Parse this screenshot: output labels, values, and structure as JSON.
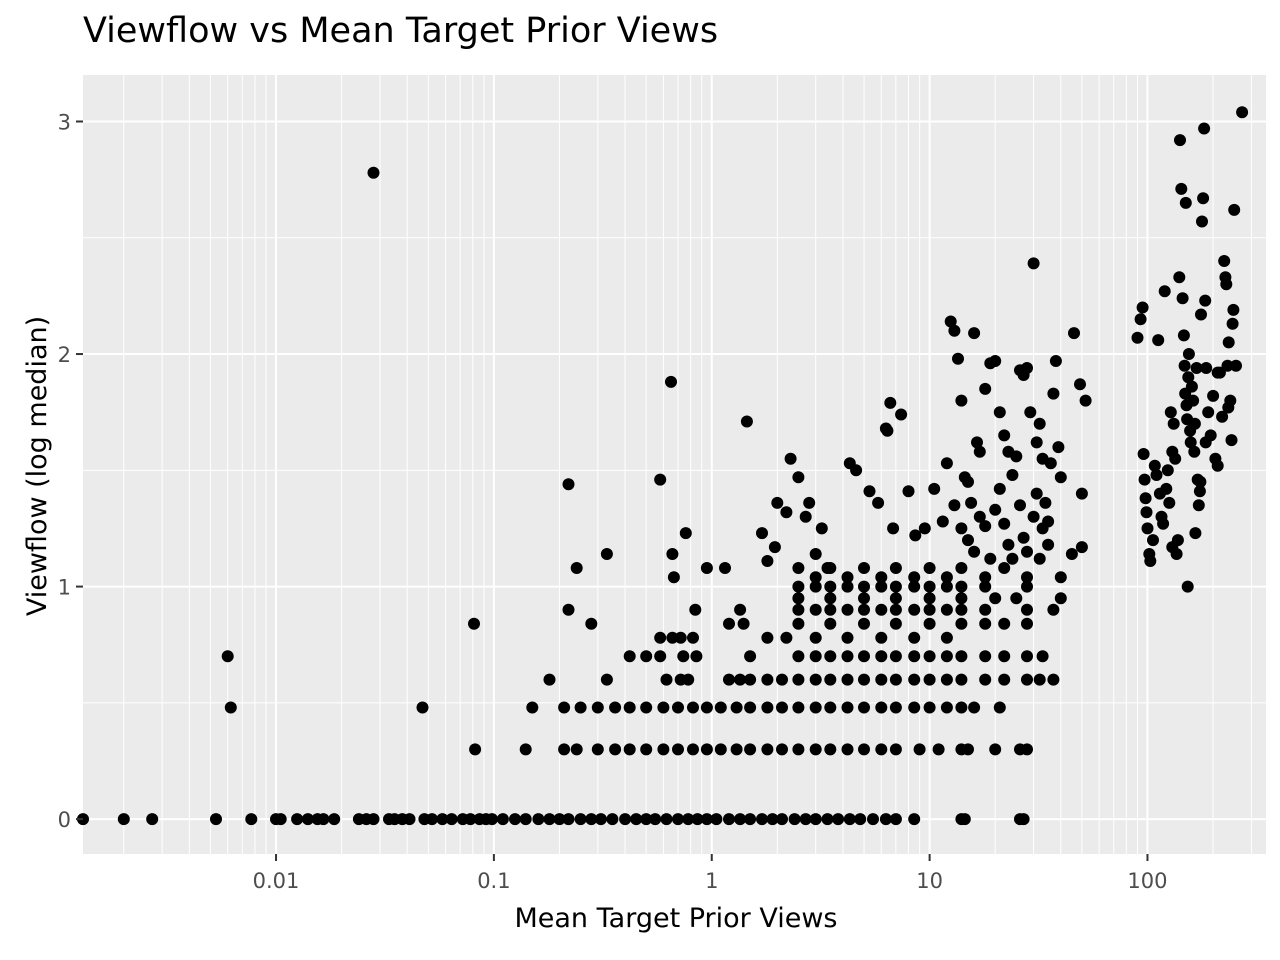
{
  "chart_data": {
    "type": "scatter",
    "title": "Viewflow vs Mean Target Prior Views",
    "xlabel": "Mean Target Prior Views",
    "ylabel": "Viewflow (log median)",
    "x_scale": "log10",
    "xlim": [
      0.0013,
      350
    ],
    "ylim": [
      -0.15,
      3.2
    ],
    "x_ticks": [
      {
        "value": 0.01,
        "label": "0.01"
      },
      {
        "value": 0.1,
        "label": "0.1"
      },
      {
        "value": 1,
        "label": "1"
      },
      {
        "value": 10,
        "label": "10"
      },
      {
        "value": 100,
        "label": "100"
      }
    ],
    "y_ticks": [
      {
        "value": 0,
        "label": "0"
      },
      {
        "value": 1,
        "label": "1"
      },
      {
        "value": 2,
        "label": "2"
      },
      {
        "value": 3,
        "label": "3"
      }
    ],
    "grid": true,
    "panel_color": "#ebebeb",
    "point_color": "#000000",
    "points": [
      [
        0.0013,
        0
      ],
      [
        0.002,
        0
      ],
      [
        0.0027,
        0
      ],
      [
        0.0053,
        0
      ],
      [
        0.0077,
        0
      ],
      [
        0.01,
        0
      ],
      [
        0.0105,
        0
      ],
      [
        0.0125,
        0
      ],
      [
        0.014,
        0
      ],
      [
        0.0155,
        0
      ],
      [
        0.0165,
        0
      ],
      [
        0.0185,
        0
      ],
      [
        0.024,
        0
      ],
      [
        0.026,
        0
      ],
      [
        0.028,
        0
      ],
      [
        0.033,
        0
      ],
      [
        0.035,
        0
      ],
      [
        0.038,
        0
      ],
      [
        0.041,
        0
      ],
      [
        0.048,
        0
      ],
      [
        0.052,
        0
      ],
      [
        0.058,
        0
      ],
      [
        0.064,
        0
      ],
      [
        0.072,
        0
      ],
      [
        0.078,
        0
      ],
      [
        0.086,
        0
      ],
      [
        0.092,
        0
      ],
      [
        0.098,
        0
      ],
      [
        0.11,
        0
      ],
      [
        0.125,
        0
      ],
      [
        0.14,
        0
      ],
      [
        0.16,
        0
      ],
      [
        0.18,
        0
      ],
      [
        0.2,
        0
      ],
      [
        0.22,
        0
      ],
      [
        0.25,
        0
      ],
      [
        0.28,
        0
      ],
      [
        0.31,
        0
      ],
      [
        0.35,
        0
      ],
      [
        0.4,
        0
      ],
      [
        0.45,
        0
      ],
      [
        0.5,
        0
      ],
      [
        0.55,
        0
      ],
      [
        0.62,
        0
      ],
      [
        0.7,
        0
      ],
      [
        0.78,
        0
      ],
      [
        0.86,
        0
      ],
      [
        0.95,
        0
      ],
      [
        1.05,
        0
      ],
      [
        1.2,
        0
      ],
      [
        1.35,
        0
      ],
      [
        1.5,
        0
      ],
      [
        1.7,
        0
      ],
      [
        1.9,
        0
      ],
      [
        2.1,
        0
      ],
      [
        2.4,
        0
      ],
      [
        2.7,
        0
      ],
      [
        3.0,
        0
      ],
      [
        3.4,
        0
      ],
      [
        3.8,
        0
      ],
      [
        4.3,
        0
      ],
      [
        4.8,
        0
      ],
      [
        5.5,
        0
      ],
      [
        6.3,
        0
      ],
      [
        7.0,
        0
      ],
      [
        8.5,
        0
      ],
      [
        14,
        0
      ],
      [
        14.5,
        0
      ],
      [
        26,
        0
      ],
      [
        27,
        0
      ],
      [
        0.028,
        2.78
      ],
      [
        0.006,
        0.7
      ],
      [
        0.0062,
        0.48
      ],
      [
        0.047,
        0.48
      ],
      [
        0.081,
        0.84
      ],
      [
        0.082,
        0.3
      ],
      [
        0.14,
        0.3
      ],
      [
        0.15,
        0.48
      ],
      [
        0.18,
        0.6
      ],
      [
        0.22,
        1.44
      ],
      [
        0.22,
        0.9
      ],
      [
        0.24,
        1.08
      ],
      [
        0.28,
        0.84
      ],
      [
        0.33,
        1.14
      ],
      [
        0.33,
        0.6
      ],
      [
        0.21,
        0.48
      ],
      [
        0.25,
        0.48
      ],
      [
        0.3,
        0.48
      ],
      [
        0.36,
        0.48
      ],
      [
        0.42,
        0.48
      ],
      [
        0.5,
        0.48
      ],
      [
        0.6,
        0.48
      ],
      [
        0.7,
        0.48
      ],
      [
        0.82,
        0.48
      ],
      [
        0.95,
        0.48
      ],
      [
        1.1,
        0.48
      ],
      [
        1.3,
        0.48
      ],
      [
        1.5,
        0.48
      ],
      [
        1.8,
        0.48
      ],
      [
        2.1,
        0.48
      ],
      [
        2.5,
        0.48
      ],
      [
        3.0,
        0.48
      ],
      [
        3.5,
        0.48
      ],
      [
        4.2,
        0.48
      ],
      [
        5.0,
        0.48
      ],
      [
        6.0,
        0.48
      ],
      [
        7.0,
        0.48
      ],
      [
        8.5,
        0.48
      ],
      [
        10,
        0.48
      ],
      [
        12,
        0.48
      ],
      [
        14,
        0.48
      ],
      [
        16,
        0.48
      ],
      [
        21,
        0.48
      ],
      [
        0.21,
        0.3
      ],
      [
        0.24,
        0.3
      ],
      [
        0.3,
        0.3
      ],
      [
        0.36,
        0.3
      ],
      [
        0.42,
        0.3
      ],
      [
        0.5,
        0.3
      ],
      [
        0.6,
        0.3
      ],
      [
        0.7,
        0.3
      ],
      [
        0.82,
        0.3
      ],
      [
        0.95,
        0.3
      ],
      [
        1.1,
        0.3
      ],
      [
        1.3,
        0.3
      ],
      [
        1.5,
        0.3
      ],
      [
        1.8,
        0.3
      ],
      [
        2.1,
        0.3
      ],
      [
        2.5,
        0.3
      ],
      [
        3.0,
        0.3
      ],
      [
        3.5,
        0.3
      ],
      [
        4.2,
        0.3
      ],
      [
        5.0,
        0.3
      ],
      [
        6.0,
        0.3
      ],
      [
        7.0,
        0.3
      ],
      [
        9,
        0.3
      ],
      [
        11,
        0.3
      ],
      [
        14,
        0.3
      ],
      [
        15,
        0.3
      ],
      [
        20,
        0.3
      ],
      [
        26,
        0.3
      ],
      [
        28,
        0.3
      ],
      [
        0.42,
        0.7
      ],
      [
        0.5,
        0.7
      ],
      [
        0.58,
        0.78
      ],
      [
        0.58,
        0.7
      ],
      [
        0.62,
        0.6
      ],
      [
        0.66,
        0.78
      ],
      [
        0.72,
        0.78
      ],
      [
        0.72,
        0.6
      ],
      [
        0.74,
        0.7
      ],
      [
        0.78,
        0.6
      ],
      [
        0.82,
        0.78
      ],
      [
        0.85,
        0.7
      ],
      [
        0.84,
        0.9
      ],
      [
        1.2,
        0.6
      ],
      [
        1.35,
        0.6
      ],
      [
        1.5,
        0.6
      ],
      [
        1.8,
        0.6
      ],
      [
        2.1,
        0.6
      ],
      [
        2.5,
        0.6
      ],
      [
        3.0,
        0.6
      ],
      [
        3.5,
        0.6
      ],
      [
        4.2,
        0.6
      ],
      [
        5.0,
        0.6
      ],
      [
        6.0,
        0.6
      ],
      [
        7.0,
        0.6
      ],
      [
        8.5,
        0.6
      ],
      [
        10,
        0.6
      ],
      [
        12,
        0.6
      ],
      [
        14,
        0.6
      ],
      [
        18,
        0.6
      ],
      [
        22,
        0.6
      ],
      [
        28,
        0.6
      ],
      [
        32,
        0.6
      ],
      [
        37,
        0.6
      ],
      [
        1.2,
        0.84
      ],
      [
        1.35,
        0.9
      ],
      [
        1.4,
        0.84
      ],
      [
        1.5,
        0.7
      ],
      [
        1.8,
        0.78
      ],
      [
        2.2,
        0.78
      ],
      [
        2.5,
        0.84
      ],
      [
        3.0,
        0.78
      ],
      [
        3.5,
        0.84
      ],
      [
        4.2,
        0.78
      ],
      [
        5.0,
        0.84
      ],
      [
        6.0,
        0.78
      ],
      [
        7.0,
        0.84
      ],
      [
        8.5,
        0.78
      ],
      [
        10,
        0.84
      ],
      [
        12,
        0.78
      ],
      [
        14,
        0.84
      ],
      [
        18,
        0.84
      ],
      [
        22,
        0.84
      ],
      [
        28,
        0.84
      ],
      [
        2.5,
        0.7
      ],
      [
        3.0,
        0.7
      ],
      [
        3.5,
        0.7
      ],
      [
        4.2,
        0.7
      ],
      [
        5.0,
        0.7
      ],
      [
        6.0,
        0.7
      ],
      [
        7.0,
        0.7
      ],
      [
        8.5,
        0.7
      ],
      [
        10,
        0.7
      ],
      [
        12,
        0.7
      ],
      [
        14,
        0.7
      ],
      [
        18,
        0.7
      ],
      [
        22,
        0.7
      ],
      [
        28,
        0.7
      ],
      [
        33,
        0.7
      ],
      [
        2.5,
        0.9
      ],
      [
        3.0,
        0.9
      ],
      [
        3.5,
        0.9
      ],
      [
        4.2,
        0.9
      ],
      [
        5.0,
        0.9
      ],
      [
        6.0,
        0.9
      ],
      [
        7.0,
        0.9
      ],
      [
        8.5,
        0.9
      ],
      [
        10,
        0.9
      ],
      [
        12,
        0.9
      ],
      [
        14,
        0.9
      ],
      [
        18,
        0.9
      ],
      [
        28,
        0.9
      ],
      [
        37,
        0.9
      ],
      [
        2.5,
        0.95
      ],
      [
        3.5,
        0.95
      ],
      [
        5.0,
        0.95
      ],
      [
        7.0,
        0.95
      ],
      [
        10,
        0.95
      ],
      [
        14,
        0.95
      ],
      [
        20,
        0.95
      ],
      [
        25,
        0.95
      ],
      [
        40,
        0.95
      ],
      [
        2.5,
        1.0
      ],
      [
        3.0,
        1.0
      ],
      [
        3.5,
        1.0
      ],
      [
        4.2,
        1.0
      ],
      [
        5.0,
        1.0
      ],
      [
        6.0,
        1.0
      ],
      [
        7.0,
        1.0
      ],
      [
        8.5,
        1.0
      ],
      [
        10,
        1.0
      ],
      [
        12,
        1.0
      ],
      [
        14,
        1.0
      ],
      [
        18,
        1.0
      ],
      [
        28,
        1.0
      ],
      [
        2.5,
        1.08
      ],
      [
        3.0,
        1.04
      ],
      [
        3.5,
        1.08
      ],
      [
        4.2,
        1.04
      ],
      [
        5.0,
        1.08
      ],
      [
        6.0,
        1.04
      ],
      [
        7.0,
        1.08
      ],
      [
        8.5,
        1.04
      ],
      [
        10,
        1.08
      ],
      [
        12,
        1.04
      ],
      [
        14,
        1.08
      ],
      [
        18,
        1.04
      ],
      [
        22,
        1.08
      ],
      [
        28,
        1.04
      ],
      [
        40,
        1.04
      ],
      [
        45,
        1.14
      ],
      [
        50,
        1.17
      ],
      [
        0.58,
        1.46
      ],
      [
        0.65,
        1.88
      ],
      [
        0.66,
        1.14
      ],
      [
        0.67,
        1.04
      ],
      [
        0.76,
        1.23
      ],
      [
        0.95,
        1.08
      ],
      [
        1.15,
        1.08
      ],
      [
        1.45,
        1.71
      ],
      [
        1.7,
        1.23
      ],
      [
        1.8,
        1.11
      ],
      [
        1.95,
        1.17
      ],
      [
        2.0,
        1.36
      ],
      [
        2.2,
        1.32
      ],
      [
        2.3,
        1.55
      ],
      [
        2.5,
        1.47
      ],
      [
        2.7,
        1.3
      ],
      [
        2.8,
        1.36
      ],
      [
        3.2,
        1.25
      ],
      [
        3.0,
        1.14
      ],
      [
        3.4,
        1.08
      ],
      [
        4.3,
        1.53
      ],
      [
        4.6,
        1.5
      ],
      [
        5.3,
        1.41
      ],
      [
        5.8,
        1.36
      ],
      [
        6.3,
        1.68
      ],
      [
        6.4,
        1.67
      ],
      [
        6.6,
        1.79
      ],
      [
        6.8,
        1.25
      ],
      [
        7.4,
        1.74
      ],
      [
        8.0,
        1.41
      ],
      [
        8.6,
        1.22
      ],
      [
        9.5,
        1.25
      ],
      [
        10.5,
        1.42
      ],
      [
        11.5,
        1.28
      ],
      [
        12,
        1.53
      ],
      [
        12.5,
        2.14
      ],
      [
        13,
        2.1
      ],
      [
        13.5,
        1.98
      ],
      [
        14,
        1.8
      ],
      [
        14.5,
        1.47
      ],
      [
        15,
        1.45
      ],
      [
        15.5,
        1.36
      ],
      [
        16,
        2.09
      ],
      [
        16.5,
        1.62
      ],
      [
        17,
        1.58
      ],
      [
        18,
        1.85
      ],
      [
        19,
        1.96
      ],
      [
        20,
        1.97
      ],
      [
        21,
        1.75
      ],
      [
        22,
        1.65
      ],
      [
        23,
        1.58
      ],
      [
        24,
        1.48
      ],
      [
        25,
        1.56
      ],
      [
        26,
        1.93
      ],
      [
        27,
        1.91
      ],
      [
        28,
        1.94
      ],
      [
        29,
        1.75
      ],
      [
        30,
        2.39
      ],
      [
        31,
        1.62
      ],
      [
        32,
        1.7
      ],
      [
        33,
        1.55
      ],
      [
        34,
        1.36
      ],
      [
        35,
        1.28
      ],
      [
        36,
        1.53
      ],
      [
        37,
        1.83
      ],
      [
        38,
        1.97
      ],
      [
        39,
        1.6
      ],
      [
        40,
        1.47
      ],
      [
        46,
        2.09
      ],
      [
        49,
        1.87
      ],
      [
        50,
        1.4
      ],
      [
        52,
        1.8
      ],
      [
        13,
        1.35
      ],
      [
        14,
        1.25
      ],
      [
        15,
        1.2
      ],
      [
        16,
        1.15
      ],
      [
        17,
        1.3
      ],
      [
        18,
        1.26
      ],
      [
        19,
        1.12
      ],
      [
        20,
        1.33
      ],
      [
        21,
        1.42
      ],
      [
        22,
        1.27
      ],
      [
        23,
        1.18
      ],
      [
        24,
        1.12
      ],
      [
        26,
        1.35
      ],
      [
        27,
        1.21
      ],
      [
        28,
        1.15
      ],
      [
        30,
        1.3
      ],
      [
        31,
        1.4
      ],
      [
        32,
        1.12
      ],
      [
        33,
        1.25
      ],
      [
        35,
        1.18
      ],
      [
        90,
        2.07
      ],
      [
        93,
        2.15
      ],
      [
        95,
        2.2
      ],
      [
        96,
        1.57
      ],
      [
        97,
        1.46
      ],
      [
        98,
        1.38
      ],
      [
        99,
        1.32
      ],
      [
        100,
        1.25
      ],
      [
        102,
        1.14
      ],
      [
        103,
        1.11
      ],
      [
        106,
        1.2
      ],
      [
        108,
        1.52
      ],
      [
        110,
        1.48
      ],
      [
        112,
        2.06
      ],
      [
        114,
        1.4
      ],
      [
        116,
        1.3
      ],
      [
        118,
        1.27
      ],
      [
        120,
        2.27
      ],
      [
        122,
        1.42
      ],
      [
        124,
        1.5
      ],
      [
        126,
        1.36
      ],
      [
        128,
        1.75
      ],
      [
        130,
        1.17
      ],
      [
        132,
        1.7
      ],
      [
        134,
        1.55
      ],
      [
        136,
        1.14
      ],
      [
        138,
        1.2
      ],
      [
        140,
        2.33
      ],
      [
        141,
        2.92
      ],
      [
        143,
        2.71
      ],
      [
        145,
        2.24
      ],
      [
        147,
        2.08
      ],
      [
        148,
        1.95
      ],
      [
        149,
        1.83
      ],
      [
        150,
        2.65
      ],
      [
        151,
        1.78
      ],
      [
        152,
        1.72
      ],
      [
        153,
        1.0
      ],
      [
        154,
        1.9
      ],
      [
        155,
        2.0
      ],
      [
        157,
        1.67
      ],
      [
        158,
        1.62
      ],
      [
        160,
        1.86
      ],
      [
        162,
        1.8
      ],
      [
        164,
        1.58
      ],
      [
        166,
        1.23
      ],
      [
        168,
        1.94
      ],
      [
        170,
        1.46
      ],
      [
        172,
        1.35
      ],
      [
        174,
        1.41
      ],
      [
        176,
        2.17
      ],
      [
        178,
        2.57
      ],
      [
        180,
        2.67
      ],
      [
        182,
        2.97
      ],
      [
        184,
        2.23
      ],
      [
        186,
        1.94
      ],
      [
        190,
        1.75
      ],
      [
        195,
        1.65
      ],
      [
        200,
        1.82
      ],
      [
        205,
        1.55
      ],
      [
        210,
        1.52
      ],
      [
        215,
        1.92
      ],
      [
        220,
        1.73
      ],
      [
        225,
        2.4
      ],
      [
        228,
        2.33
      ],
      [
        230,
        2.3
      ],
      [
        233,
        1.95
      ],
      [
        236,
        2.05
      ],
      [
        240,
        1.8
      ],
      [
        243,
        1.63
      ],
      [
        246,
        2.13
      ],
      [
        248,
        2.19
      ],
      [
        250,
        2.62
      ],
      [
        255,
        1.95
      ],
      [
        272,
        3.04
      ],
      [
        130,
        1.58
      ],
      [
        165,
        1.7
      ],
      [
        175,
        1.45
      ],
      [
        185,
        1.62
      ],
      [
        235,
        1.77
      ],
      [
        210,
        1.92
      ]
    ]
  }
}
